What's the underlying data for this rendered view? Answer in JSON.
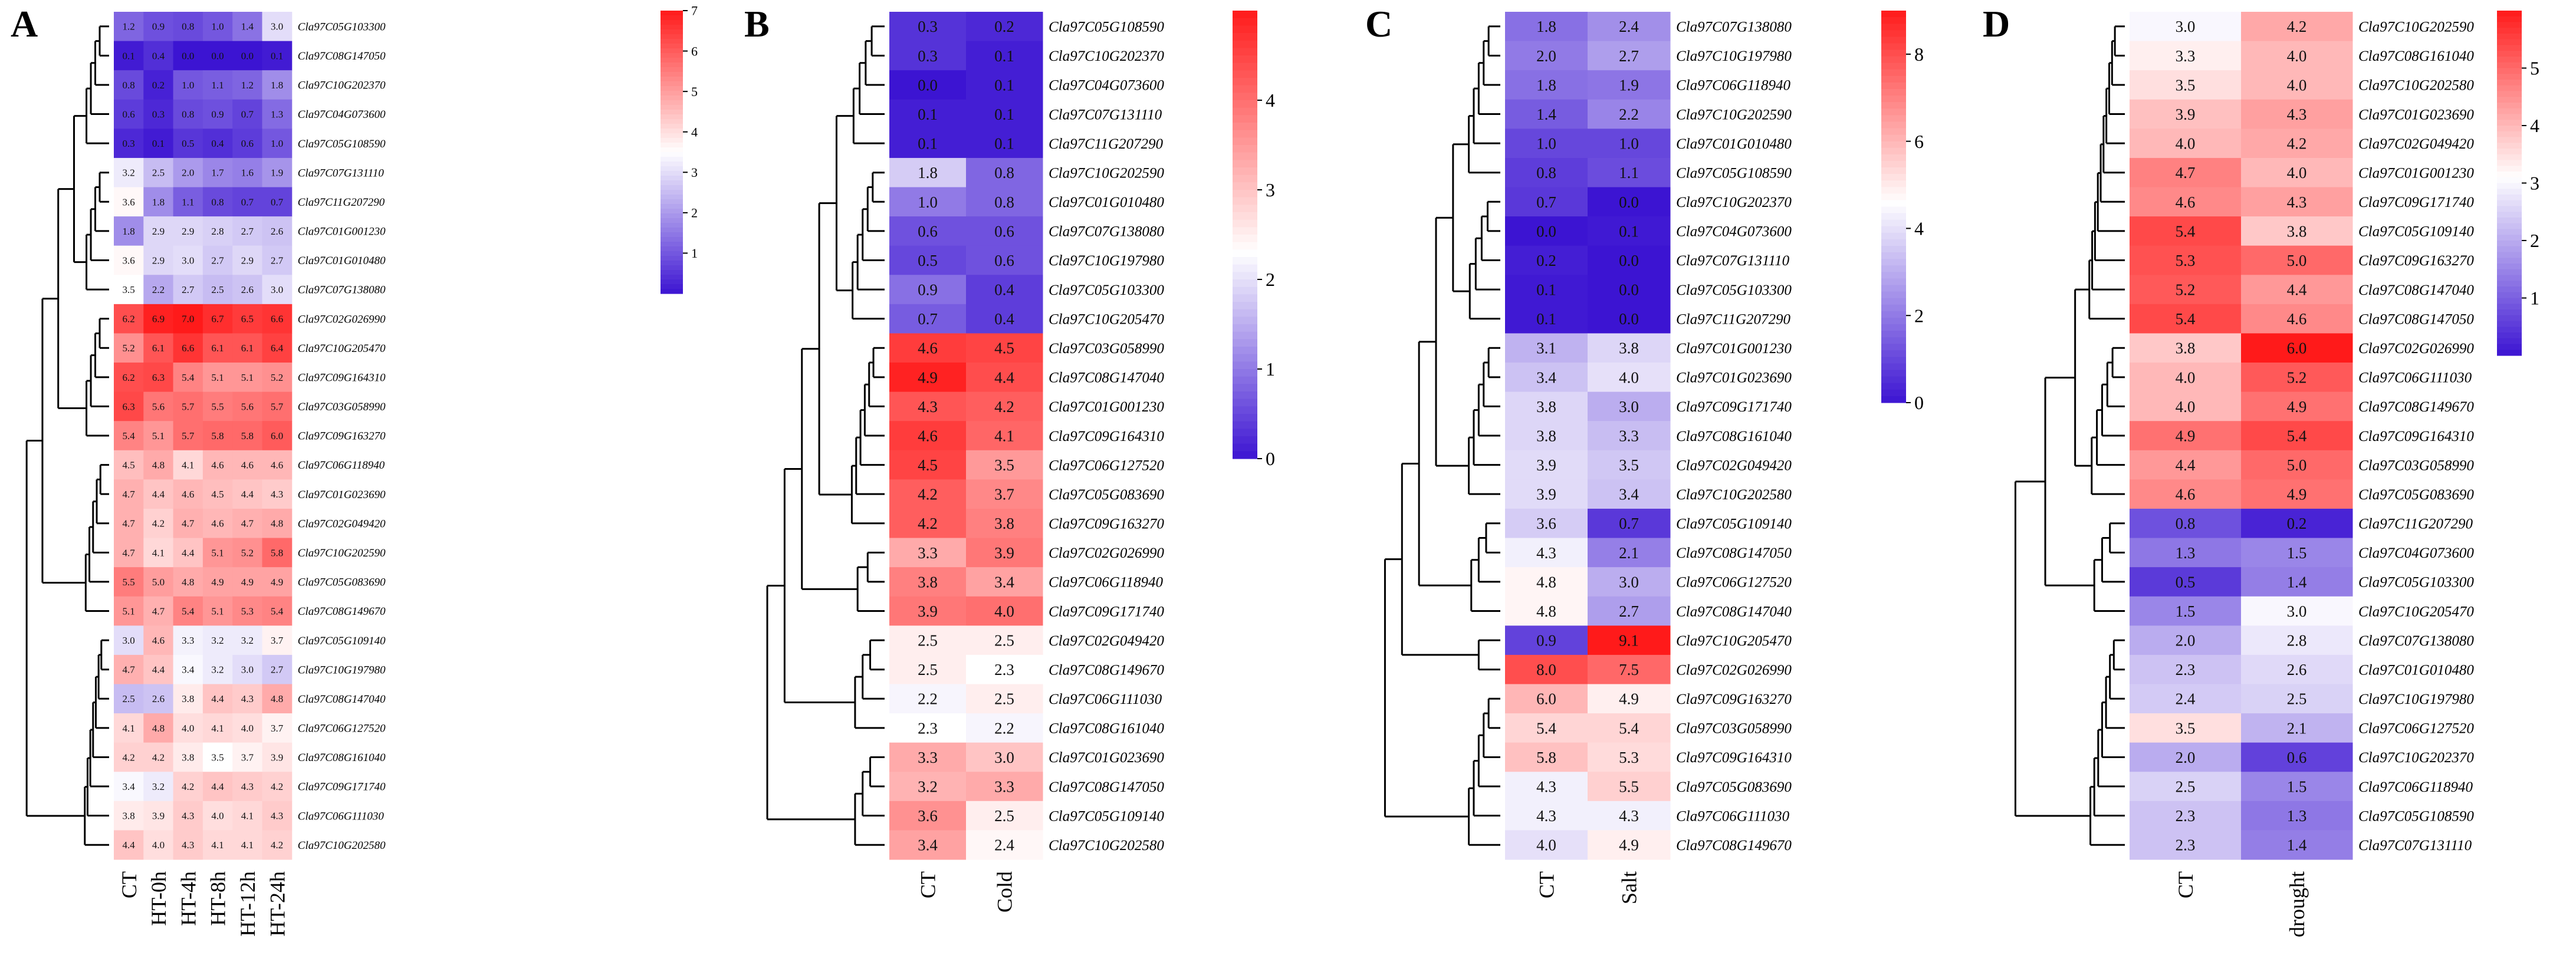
{
  "figure": {
    "panels_order": [
      "A",
      "B",
      "C",
      "D"
    ]
  },
  "chart_data": [
    {
      "type": "heatmap",
      "panel_label": "A",
      "columns": [
        "CT",
        "HT-0h",
        "HT-4h",
        "HT-8h",
        "HT-12h",
        "HT-24h"
      ],
      "rows": [
        "Cla97C05G103300",
        "Cla97C08G147050",
        "Cla97C10G202370",
        "Cla97C04G073600",
        "Cla97C05G108590",
        "Cla97C07G131110",
        "Cla97C11G207290",
        "Cla97C01G001230",
        "Cla97C01G010480",
        "Cla97C07G138080",
        "Cla97C02G026990",
        "Cla97C10G205470",
        "Cla97C09G164310",
        "Cla97C03G058990",
        "Cla97C09G163270",
        "Cla97C06G118940",
        "Cla97C01G023690",
        "Cla97C02G049420",
        "Cla97C10G202590",
        "Cla97C05G083690",
        "Cla97C08G149670",
        "Cla97C05G109140",
        "Cla97C10G197980",
        "Cla97C08G147040",
        "Cla97C06G127520",
        "Cla97C08G161040",
        "Cla97C09G171740",
        "Cla97C06G111030",
        "Cla97C10G202580"
      ],
      "values": [
        [
          1.2,
          0.9,
          0.8,
          1.0,
          1.4,
          3.0
        ],
        [
          0.1,
          0.4,
          0.0,
          0.0,
          0.0,
          0.1
        ],
        [
          0.8,
          0.2,
          1.0,
          1.1,
          1.2,
          1.8
        ],
        [
          0.6,
          0.3,
          0.8,
          0.9,
          0.7,
          1.3
        ],
        [
          0.3,
          0.1,
          0.5,
          0.4,
          0.6,
          1.0
        ],
        [
          3.2,
          2.5,
          2.0,
          1.7,
          1.6,
          1.9
        ],
        [
          3.6,
          1.8,
          1.1,
          0.8,
          0.7,
          0.7
        ],
        [
          1.8,
          2.9,
          2.9,
          2.8,
          2.7,
          2.6
        ],
        [
          3.6,
          2.9,
          3.0,
          2.7,
          2.9,
          2.7
        ],
        [
          3.5,
          2.2,
          2.7,
          2.5,
          2.6,
          3.0
        ],
        [
          6.2,
          6.9,
          7.0,
          6.7,
          6.5,
          6.6
        ],
        [
          5.2,
          6.1,
          6.6,
          6.1,
          6.1,
          6.4
        ],
        [
          6.2,
          6.3,
          5.4,
          5.1,
          5.1,
          5.2
        ],
        [
          6.3,
          5.6,
          5.7,
          5.5,
          5.6,
          5.7
        ],
        [
          5.4,
          5.1,
          5.7,
          5.8,
          5.8,
          6.0
        ],
        [
          4.5,
          4.8,
          4.1,
          4.6,
          4.6,
          4.6
        ],
        [
          4.7,
          4.4,
          4.6,
          4.5,
          4.4,
          4.3
        ],
        [
          4.7,
          4.2,
          4.7,
          4.6,
          4.7,
          4.8
        ],
        [
          4.7,
          4.1,
          4.4,
          5.1,
          5.2,
          5.8
        ],
        [
          5.5,
          5.0,
          4.8,
          4.9,
          4.9,
          4.9
        ],
        [
          5.1,
          4.7,
          5.4,
          5.1,
          5.3,
          5.4
        ],
        [
          3.0,
          4.6,
          3.3,
          3.2,
          3.2,
          3.7
        ],
        [
          4.7,
          4.4,
          3.4,
          3.2,
          3.0,
          2.7
        ],
        [
          2.5,
          2.6,
          3.8,
          4.4,
          4.3,
          4.8
        ],
        [
          4.1,
          4.8,
          4.0,
          4.1,
          4.0,
          3.7
        ],
        [
          4.2,
          4.2,
          3.8,
          3.5,
          3.7,
          3.9
        ],
        [
          3.4,
          3.2,
          4.2,
          4.4,
          4.3,
          4.2
        ],
        [
          3.8,
          3.9,
          4.3,
          4.0,
          4.1,
          4.3
        ],
        [
          4.4,
          4.0,
          4.3,
          4.1,
          4.1,
          4.2
        ]
      ],
      "colorbar": {
        "min": 0,
        "max": 7,
        "ticks": [
          1,
          2,
          3,
          4,
          5,
          6,
          7
        ]
      },
      "colors": {
        "low": "#3c14d2",
        "mid": "#ffffff",
        "high": "#ff1a1a",
        "mid_value": 3.5
      }
    },
    {
      "type": "heatmap",
      "panel_label": "B",
      "columns": [
        "CT",
        "Cold"
      ],
      "rows": [
        "Cla97C05G108590",
        "Cla97C10G202370",
        "Cla97C04G073600",
        "Cla97C07G131110",
        "Cla97C11G207290",
        "Cla97C10G202590",
        "Cla97C01G010480",
        "Cla97C07G138080",
        "Cla97C10G197980",
        "Cla97C05G103300",
        "Cla97C10G205470",
        "Cla97C03G058990",
        "Cla97C08G147040",
        "Cla97C01G001230",
        "Cla97C09G164310",
        "Cla97C06G127520",
        "Cla97C05G083690",
        "Cla97C09G163270",
        "Cla97C02G026990",
        "Cla97C06G118940",
        "Cla97C09G171740",
        "Cla97C02G049420",
        "Cla97C08G149670",
        "Cla97C06G111030",
        "Cla97C08G161040",
        "Cla97C01G023690",
        "Cla97C08G147050",
        "Cla97C05G109140",
        "Cla97C10G202580"
      ],
      "values": [
        [
          0.3,
          0.2
        ],
        [
          0.3,
          0.1
        ],
        [
          0.0,
          0.1
        ],
        [
          0.1,
          0.1
        ],
        [
          0.1,
          0.1
        ],
        [
          1.8,
          0.8
        ],
        [
          1.0,
          0.8
        ],
        [
          0.6,
          0.6
        ],
        [
          0.5,
          0.6
        ],
        [
          0.9,
          0.4
        ],
        [
          0.7,
          0.4
        ],
        [
          4.6,
          4.5
        ],
        [
          4.9,
          4.4
        ],
        [
          4.3,
          4.2
        ],
        [
          4.6,
          4.1
        ],
        [
          4.5,
          3.5
        ],
        [
          4.2,
          3.7
        ],
        [
          4.2,
          3.8
        ],
        [
          3.3,
          3.9
        ],
        [
          3.8,
          3.4
        ],
        [
          3.9,
          4.0
        ],
        [
          2.5,
          2.5
        ],
        [
          2.5,
          2.3
        ],
        [
          2.2,
          2.5
        ],
        [
          2.3,
          2.2
        ],
        [
          3.3,
          3.0
        ],
        [
          3.2,
          3.3
        ],
        [
          3.6,
          2.5
        ],
        [
          3.4,
          2.4
        ]
      ],
      "colorbar": {
        "min": 0,
        "max": 5,
        "ticks": [
          0,
          1,
          2,
          3,
          4
        ]
      },
      "colors": {
        "low": "#3c14d2",
        "mid": "#ffffff",
        "high": "#ff1a1a",
        "mid_value": 2.3
      }
    },
    {
      "type": "heatmap",
      "panel_label": "C",
      "columns": [
        "CT",
        "Salt"
      ],
      "rows": [
        "Cla97C07G138080",
        "Cla97C10G197980",
        "Cla97C06G118940",
        "Cla97C10G202590",
        "Cla97C01G010480",
        "Cla97C05G108590",
        "Cla97C10G202370",
        "Cla97C04G073600",
        "Cla97C07G131110",
        "Cla97C05G103300",
        "Cla97C11G207290",
        "Cla97C01G001230",
        "Cla97C01G023690",
        "Cla97C09G171740",
        "Cla97C08G161040",
        "Cla97C02G049420",
        "Cla97C10G202580",
        "Cla97C05G109140",
        "Cla97C08G147050",
        "Cla97C06G127520",
        "Cla97C08G147040",
        "Cla97C10G205470",
        "Cla97C02G026990",
        "Cla97C09G163270",
        "Cla97C03G058990",
        "Cla97C09G164310",
        "Cla97C05G083690",
        "Cla97C06G111030",
        "Cla97C08G149670"
      ],
      "values": [
        [
          1.8,
          2.4
        ],
        [
          2.0,
          2.7
        ],
        [
          1.8,
          1.9
        ],
        [
          1.4,
          2.2
        ],
        [
          1.0,
          1.0
        ],
        [
          0.8,
          1.1
        ],
        [
          0.7,
          0.0
        ],
        [
          0.0,
          0.1
        ],
        [
          0.2,
          0.0
        ],
        [
          0.1,
          0.0
        ],
        [
          0.1,
          0.0
        ],
        [
          3.1,
          3.8
        ],
        [
          3.4,
          4.0
        ],
        [
          3.8,
          3.0
        ],
        [
          3.8,
          3.3
        ],
        [
          3.9,
          3.5
        ],
        [
          3.9,
          3.4
        ],
        [
          3.6,
          0.7
        ],
        [
          4.3,
          2.1
        ],
        [
          4.8,
          3.0
        ],
        [
          4.8,
          2.7
        ],
        [
          0.9,
          9.1
        ],
        [
          8.0,
          7.5
        ],
        [
          6.0,
          4.9
        ],
        [
          5.4,
          5.4
        ],
        [
          5.8,
          5.3
        ],
        [
          4.3,
          5.5
        ],
        [
          4.3,
          4.3
        ],
        [
          4.0,
          4.9
        ]
      ],
      "colorbar": {
        "min": 0,
        "max": 9,
        "ticks": [
          0,
          2,
          4,
          6,
          8
        ]
      },
      "colors": {
        "low": "#3c14d2",
        "mid": "#ffffff",
        "high": "#ff1a1a",
        "mid_value": 4.6
      }
    },
    {
      "type": "heatmap",
      "panel_label": "D",
      "columns": [
        "CT",
        "drought"
      ],
      "rows": [
        "Cla97C10G202590",
        "Cla97C08G161040",
        "Cla97C10G202580",
        "Cla97C01G023690",
        "Cla97C02G049420",
        "Cla97C01G001230",
        "Cla97C09G171740",
        "Cla97C05G109140",
        "Cla97C09G163270",
        "Cla97C08G147040",
        "Cla97C08G147050",
        "Cla97C02G026990",
        "Cla97C06G111030",
        "Cla97C08G149670",
        "Cla97C09G164310",
        "Cla97C03G058990",
        "Cla97C05G083690",
        "Cla97C11G207290",
        "Cla97C04G073600",
        "Cla97C05G103300",
        "Cla97C10G205470",
        "Cla97C07G138080",
        "Cla97C01G010480",
        "Cla97C10G197980",
        "Cla97C06G127520",
        "Cla97C10G202370",
        "Cla97C06G118940",
        "Cla97C05G108590",
        "Cla97C07G131110"
      ],
      "values": [
        [
          3.0,
          4.2
        ],
        [
          3.3,
          4.0
        ],
        [
          3.5,
          4.0
        ],
        [
          3.9,
          4.3
        ],
        [
          4.0,
          4.2
        ],
        [
          4.7,
          4.0
        ],
        [
          4.6,
          4.3
        ],
        [
          5.4,
          3.8
        ],
        [
          5.3,
          5.0
        ],
        [
          5.2,
          4.4
        ],
        [
          5.4,
          4.6
        ],
        [
          3.8,
          6.0
        ],
        [
          4.0,
          5.2
        ],
        [
          4.0,
          4.9
        ],
        [
          4.9,
          5.4
        ],
        [
          4.4,
          5.0
        ],
        [
          4.6,
          4.9
        ],
        [
          0.8,
          0.2
        ],
        [
          1.3,
          1.5
        ],
        [
          0.5,
          1.4
        ],
        [
          1.5,
          3.0
        ],
        [
          2.0,
          2.8
        ],
        [
          2.3,
          2.6
        ],
        [
          2.4,
          2.5
        ],
        [
          3.5,
          2.1
        ],
        [
          2.0,
          0.6
        ],
        [
          2.5,
          1.5
        ],
        [
          2.3,
          1.3
        ],
        [
          2.3,
          1.4
        ]
      ],
      "colorbar": {
        "min": 0,
        "max": 6,
        "ticks": [
          1,
          2,
          3,
          4,
          5
        ]
      },
      "colors": {
        "low": "#3c14d2",
        "mid": "#ffffff",
        "high": "#ff1a1a",
        "mid_value": 3.1
      }
    }
  ]
}
